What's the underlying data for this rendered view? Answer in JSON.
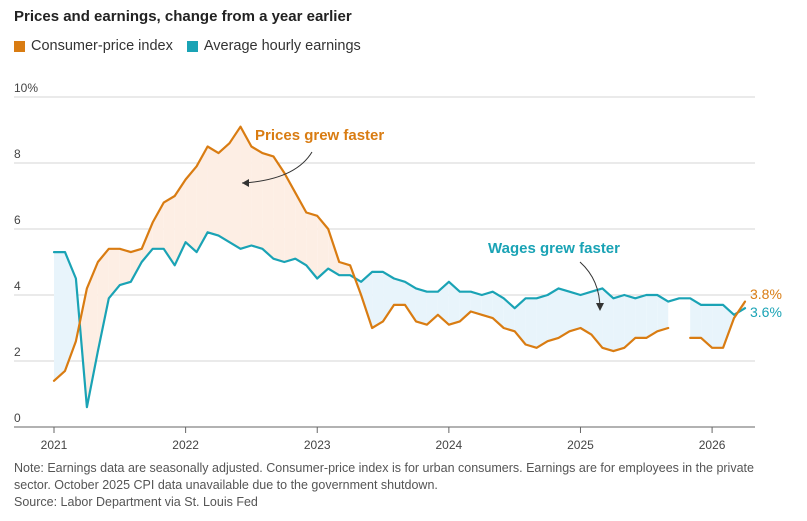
{
  "colors": {
    "cpi": "#d97c12",
    "wages": "#1aa3b5",
    "cpi_fill": "#fdeee4",
    "wages_fill": "#e8f4fb"
  },
  "chart_data": {
    "type": "line",
    "title": "Prices and earnings, change from a year earlier",
    "ylim": [
      0,
      10
    ],
    "yticks": [
      {
        "value": 0,
        "label": "0"
      },
      {
        "value": 2,
        "label": "2"
      },
      {
        "value": 4,
        "label": "4"
      },
      {
        "value": 6,
        "label": "6"
      },
      {
        "value": 8,
        "label": "8"
      },
      {
        "value": 10,
        "label": "10%"
      }
    ],
    "xlim": [
      "2021-01",
      "2026-04"
    ],
    "xticks": [
      {
        "value": "2021-01",
        "label": "2021"
      },
      {
        "value": "2022-01",
        "label": "2022"
      },
      {
        "value": "2023-01",
        "label": "2023"
      },
      {
        "value": "2024-01",
        "label": "2024"
      },
      {
        "value": "2025-01",
        "label": "2025"
      },
      {
        "value": "2026-01",
        "label": "2026"
      }
    ],
    "x": [
      "2021-01",
      "2021-02",
      "2021-03",
      "2021-04",
      "2021-05",
      "2021-06",
      "2021-07",
      "2021-08",
      "2021-09",
      "2021-10",
      "2021-11",
      "2021-12",
      "2022-01",
      "2022-02",
      "2022-03",
      "2022-04",
      "2022-05",
      "2022-06",
      "2022-07",
      "2022-08",
      "2022-09",
      "2022-10",
      "2022-11",
      "2022-12",
      "2023-01",
      "2023-02",
      "2023-03",
      "2023-04",
      "2023-05",
      "2023-06",
      "2023-07",
      "2023-08",
      "2023-09",
      "2023-10",
      "2023-11",
      "2023-12",
      "2024-01",
      "2024-02",
      "2024-03",
      "2024-04",
      "2024-05",
      "2024-06",
      "2024-07",
      "2024-08",
      "2024-09",
      "2024-10",
      "2024-11",
      "2024-12",
      "2025-01",
      "2025-02",
      "2025-03",
      "2025-04",
      "2025-05",
      "2025-06",
      "2025-07",
      "2025-08",
      "2025-09",
      "2025-10",
      "2025-11",
      "2025-12",
      "2026-01",
      "2026-02",
      "2026-03",
      "2026-04"
    ],
    "series": [
      {
        "name": "Consumer-price index",
        "key": "cpi",
        "values": [
          1.4,
          1.7,
          2.6,
          4.2,
          5.0,
          5.4,
          5.4,
          5.3,
          5.4,
          6.2,
          6.8,
          7.0,
          7.5,
          7.9,
          8.5,
          8.3,
          8.6,
          9.1,
          8.5,
          8.3,
          8.2,
          7.7,
          7.1,
          6.5,
          6.4,
          6.0,
          5.0,
          4.9,
          4.0,
          3.0,
          3.2,
          3.7,
          3.7,
          3.2,
          3.1,
          3.4,
          3.1,
          3.2,
          3.5,
          3.4,
          3.3,
          3.0,
          2.9,
          2.5,
          2.4,
          2.6,
          2.7,
          2.9,
          3.0,
          2.8,
          2.4,
          2.3,
          2.4,
          2.7,
          2.7,
          2.9,
          3.0,
          null,
          2.7,
          2.7,
          2.4,
          2.4,
          3.3,
          3.8
        ],
        "end_label": "3.8%"
      },
      {
        "name": "Average hourly earnings",
        "key": "wages",
        "values": [
          5.3,
          5.3,
          4.5,
          0.6,
          2.3,
          3.9,
          4.3,
          4.4,
          5.0,
          5.4,
          5.4,
          4.9,
          5.6,
          5.3,
          5.9,
          5.8,
          5.6,
          5.4,
          5.5,
          5.4,
          5.1,
          5.0,
          5.1,
          4.9,
          4.5,
          4.8,
          4.6,
          4.6,
          4.4,
          4.7,
          4.7,
          4.5,
          4.4,
          4.2,
          4.1,
          4.1,
          4.4,
          4.1,
          4.1,
          4.0,
          4.1,
          3.9,
          3.6,
          3.9,
          3.9,
          4.0,
          4.2,
          4.1,
          4.0,
          4.1,
          4.2,
          3.9,
          4.0,
          3.9,
          4.0,
          4.0,
          3.8,
          3.9,
          3.9,
          3.7,
          3.7,
          3.7,
          3.4,
          3.6
        ],
        "end_label": "3.6%"
      }
    ],
    "annotations": [
      {
        "key": "prices",
        "text": "Prices grew faster",
        "color": "cpi"
      },
      {
        "key": "wages",
        "text": "Wages grew faster",
        "color": "wages"
      }
    ],
    "grid": true,
    "legend": "top-left"
  },
  "footer": {
    "note": "Note: Earnings data are seasonally adjusted. Consumer-price index is for urban consumers. Earnings are for employees in the private sector. October 2025 CPI data unavailable due to the government shutdown.",
    "source": "Source: Labor Department via St. Louis Fed"
  }
}
